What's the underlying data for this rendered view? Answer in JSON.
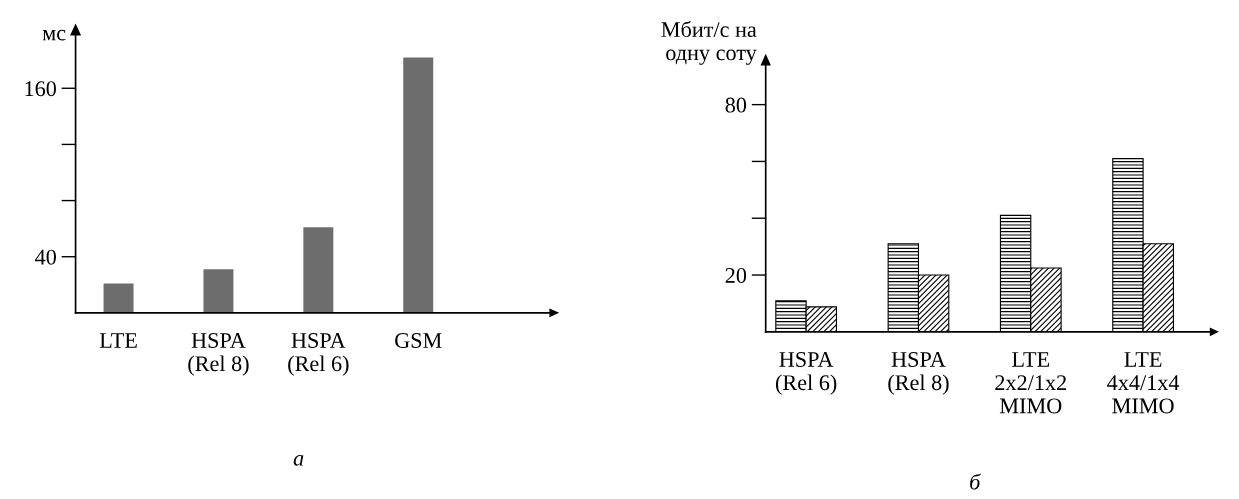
{
  "chart_data": [
    {
      "type": "bar",
      "title": "а",
      "ylabel": "мс",
      "categories": [
        "LTE",
        "HSPA\n(Rel 8)",
        "HSPA\n(Rel 6)",
        "GSM"
      ],
      "values": [
        21,
        31,
        61,
        182
      ],
      "color": "#6d6d6d",
      "ylim": [
        0,
        198
      ],
      "yticks": [
        40,
        {
          "value": 80,
          "label": null
        },
        {
          "value": 120,
          "label": null
        },
        160
      ],
      "grid": false,
      "legend": false
    },
    {
      "type": "bar",
      "title": "б",
      "ylabel": "Мбит/с на\nодну соту",
      "categories": [
        "HSPA\n(Rel 6)",
        "HSPA\n(Rel 8)",
        "LTE\n2x2/1x2\nMIMO",
        "LTE\n4x4/1x4\nMIMO"
      ],
      "series": [
        {
          "color": "#000000",
          "values": [
            10.9,
            31,
            41,
            61
          ]
        },
        {
          "color": "#000000",
          "values": [
            8.8,
            20,
            22.5,
            31
          ]
        }
      ],
      "ylim": [
        0,
        94
      ],
      "yticks": [
        20,
        {
          "value": 40,
          "label": null
        },
        {
          "value": 60,
          "label": null
        },
        80
      ],
      "grid": false,
      "legend": false
    }
  ]
}
